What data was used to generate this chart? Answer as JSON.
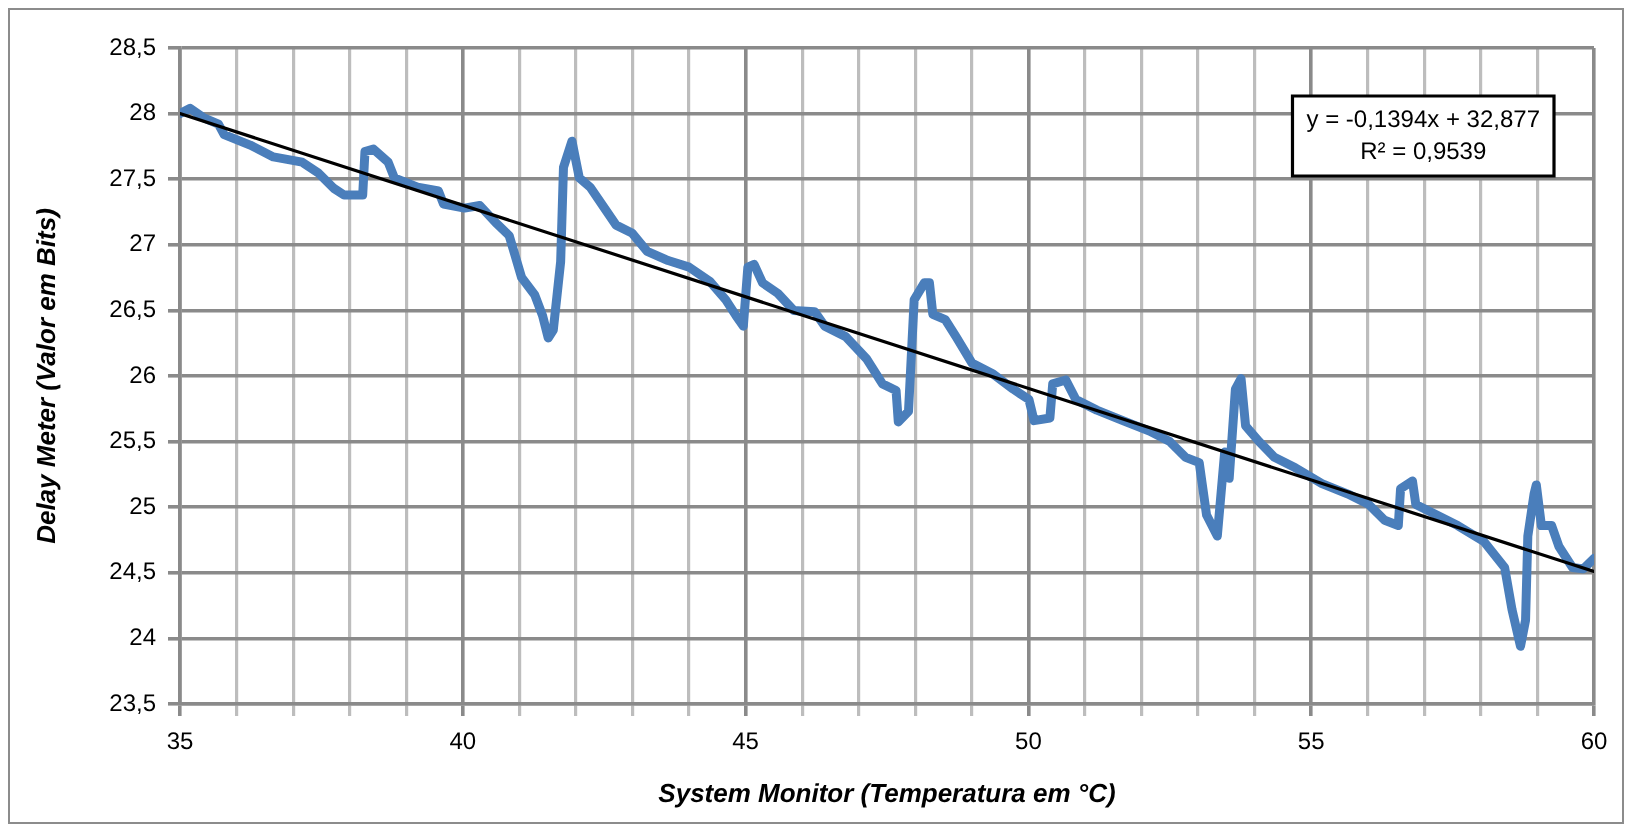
{
  "chart_data": {
    "type": "line",
    "xlabel": "System Monitor (Temperatura em °C)",
    "ylabel": "Delay Meter (Valor em Bits)",
    "xlim": [
      35,
      60
    ],
    "xticks": [
      35,
      {
        "value": 36,
        "label": null
      },
      {
        "value": 37,
        "label": null
      },
      {
        "value": 38,
        "label": null
      },
      {
        "value": 39,
        "label": null
      },
      40,
      {
        "value": 41,
        "label": null
      },
      {
        "value": 42,
        "label": null
      },
      {
        "value": 43,
        "label": null
      },
      {
        "value": 44,
        "label": null
      },
      45,
      {
        "value": 46,
        "label": null
      },
      {
        "value": 47,
        "label": null
      },
      {
        "value": 48,
        "label": null
      },
      {
        "value": 49,
        "label": null
      },
      50,
      {
        "value": 51,
        "label": null
      },
      {
        "value": 52,
        "label": null
      },
      {
        "value": 53,
        "label": null
      },
      {
        "value": 54,
        "label": null
      },
      55,
      {
        "value": 56,
        "label": null
      },
      {
        "value": 57,
        "label": null
      },
      {
        "value": 58,
        "label": null
      },
      {
        "value": 59,
        "label": null
      },
      60
    ],
    "ylim": [
      23.5,
      28.5
    ],
    "yticks": [
      {
        "value": 23.5,
        "label": "23,5"
      },
      24,
      {
        "value": 24.5,
        "label": "24,5"
      },
      25,
      {
        "value": 25.5,
        "label": "25,5"
      },
      26,
      {
        "value": 26.5,
        "label": "26,5"
      },
      27,
      {
        "value": 27.5,
        "label": "27,5"
      },
      28,
      {
        "value": 28.5,
        "label": "28,5"
      }
    ],
    "grid": true,
    "legend": false,
    "marker": "none",
    "line_style": "solid",
    "annotations": [
      "y = -0,1394x + 32,877",
      "R² = 0,9539"
    ],
    "series": [
      {
        "color": "#4a7ebb",
        "x": [
          35,
          35.18,
          35.41,
          35.68,
          35.78,
          36.24,
          36.65,
          37.16,
          37.44,
          37.72,
          37.9,
          38.23,
          38.27,
          38.42,
          38.68,
          38.79,
          39.2,
          39.57,
          39.66,
          40.03,
          40.3,
          40.58,
          40.82,
          41.04,
          41.27,
          41.41,
          41.51,
          41.6,
          41.73,
          41.78,
          41.93,
          42.06,
          42.25,
          42.52,
          42.71,
          42.99,
          43.26,
          43.63,
          44,
          44.37,
          44.65,
          44.83,
          44.96,
          45.04,
          45.15,
          45.3,
          45.57,
          45.85,
          46.22,
          46.4,
          46.77,
          47.14,
          47.42,
          47.66,
          47.7,
          47.88,
          47.98,
          48.16,
          48.25,
          48.31,
          48.53,
          48.72,
          49,
          49.36,
          49.73,
          50.01,
          50.1,
          50.38,
          50.43,
          50.66,
          50.84,
          51.21,
          51.67,
          52.14,
          52.5,
          52.78,
          53.02,
          53.15,
          53.34,
          53.47,
          53.55,
          53.66,
          53.76,
          53.84,
          54.08,
          54.35,
          54.72,
          55.19,
          55.65,
          56.02,
          56.3,
          56.54,
          56.58,
          56.79,
          56.85,
          57.22,
          57.59,
          58.05,
          58.42,
          58.55,
          58.7,
          58.79,
          58.83,
          58.94,
          58.98,
          59.07,
          59.25,
          59.38,
          59.62,
          59.81,
          60
        ],
        "values": [
          28.0,
          28.04,
          27.97,
          27.92,
          27.84,
          27.76,
          27.67,
          27.63,
          27.55,
          27.43,
          27.38,
          27.38,
          27.71,
          27.73,
          27.63,
          27.51,
          27.44,
          27.41,
          27.31,
          27.28,
          27.3,
          27.17,
          27.07,
          26.75,
          26.62,
          26.46,
          26.29,
          26.35,
          26.87,
          27.59,
          27.79,
          27.51,
          27.44,
          27.27,
          27.15,
          27.09,
          26.95,
          26.88,
          26.83,
          26.72,
          26.58,
          26.46,
          26.38,
          26.83,
          26.85,
          26.71,
          26.63,
          26.5,
          26.49,
          26.38,
          26.3,
          26.13,
          25.94,
          25.89,
          25.65,
          25.73,
          26.58,
          26.71,
          26.71,
          26.47,
          26.43,
          26.3,
          26.1,
          26.02,
          25.9,
          25.82,
          25.66,
          25.68,
          25.94,
          25.97,
          25.82,
          25.74,
          25.66,
          25.58,
          25.5,
          25.38,
          25.34,
          24.94,
          24.78,
          25.42,
          25.22,
          25.9,
          25.98,
          25.62,
          25.5,
          25.38,
          25.3,
          25.18,
          25.1,
          25.02,
          24.9,
          24.86,
          25.14,
          25.2,
          25.02,
          24.94,
          24.86,
          24.74,
          24.54,
          24.22,
          23.94,
          24.14,
          24.78,
          25.1,
          25.17,
          24.86,
          24.86,
          24.7,
          24.54,
          24.53,
          24.61
        ]
      },
      {
        "type": "line",
        "color": "#000000",
        "x": [
          35,
          60
        ],
        "values": [
          28.0,
          24.51
        ]
      }
    ]
  }
}
